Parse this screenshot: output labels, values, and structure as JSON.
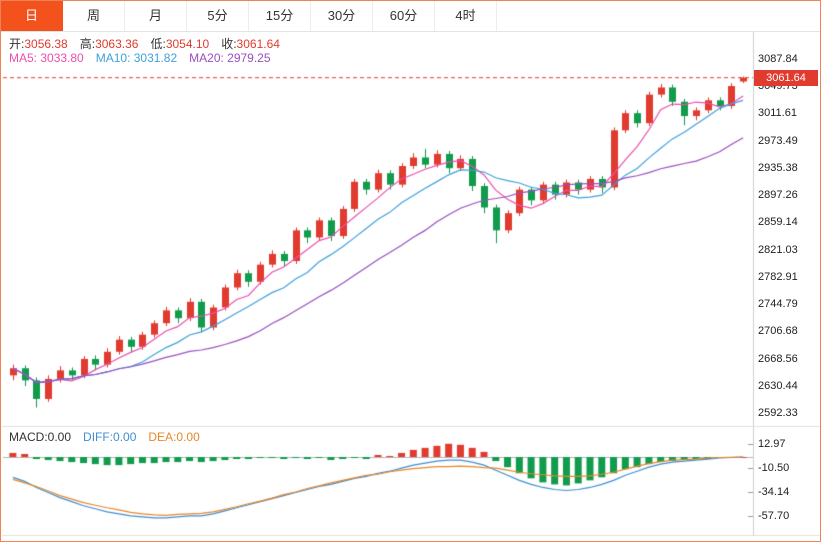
{
  "tabs": [
    {
      "name": "day",
      "label": "日",
      "active": true
    },
    {
      "name": "week",
      "label": "周",
      "active": false
    },
    {
      "name": "month",
      "label": "月",
      "active": false
    },
    {
      "name": "m5",
      "label": "5分",
      "active": false
    },
    {
      "name": "m15",
      "label": "15分",
      "active": false
    },
    {
      "name": "m30",
      "label": "30分",
      "active": false
    },
    {
      "name": "m60",
      "label": "60分",
      "active": false
    },
    {
      "name": "h4",
      "label": "4时",
      "active": false
    }
  ],
  "ohlc": {
    "items": [
      {
        "name": "open",
        "label": "开:",
        "value": "3056.38"
      },
      {
        "name": "high",
        "label": "高:",
        "value": "3063.36"
      },
      {
        "name": "low",
        "label": "低:",
        "value": "3054.10"
      },
      {
        "name": "close",
        "label": "收:",
        "value": "3061.64"
      }
    ],
    "value_color": "#e13b2f"
  },
  "ma_legend": [
    {
      "name": "ma5",
      "label": "MA5:",
      "value": "3033.80",
      "color": "#ec4fae"
    },
    {
      "name": "ma10",
      "label": "MA10:",
      "value": "3031.82",
      "color": "#41a0dc"
    },
    {
      "name": "ma20",
      "label": "MA20:",
      "value": "2979.25",
      "color": "#9a4fc0"
    }
  ],
  "macd_legend": [
    {
      "name": "macd",
      "label": "MACD:",
      "value": "0.00",
      "color": "#333333"
    },
    {
      "name": "diff",
      "label": "DIFF:",
      "value": "0.00",
      "color": "#3f8fd4"
    },
    {
      "name": "dea",
      "label": "DEA:",
      "value": "0.00",
      "color": "#e8872a"
    }
  ],
  "price_tag": {
    "value": "3061.64",
    "bg": "#e13b2f"
  },
  "axis": {
    "price_labels": [
      "3087.84",
      "3049.73",
      "3011.61",
      "2973.49",
      "2935.38",
      "2897.26",
      "2859.14",
      "2821.03",
      "2782.91",
      "2744.79",
      "2706.68",
      "2668.56",
      "2630.44",
      "2592.33"
    ],
    "macd_labels": [
      "12.97",
      "-10.50",
      "-34.14",
      "-57.70"
    ]
  },
  "colors": {
    "up": "#e13b2f",
    "down": "#119b4c",
    "ma5": "#ec4fae",
    "ma10": "#41a0dc",
    "ma20": "#9a4fc0",
    "diff_line": "#3f8fd4",
    "dea_line": "#e8872a",
    "tab_active_bg": "#f4521d",
    "page_border": "#ef8257",
    "axis_line": "#cfcfcf",
    "zero_line": "#b5b5b5",
    "separator": "#e0e0e0",
    "dashed_price": "#e13b2f"
  },
  "chart_data": [
    {
      "type": "candlestick",
      "name": "price-panel",
      "y_range": [
        2592.33,
        3087.84
      ],
      "y_ticks": [
        "3087.84",
        "3049.73",
        "3011.61",
        "2973.49",
        "2935.38",
        "2897.26",
        "2859.14",
        "2821.03",
        "2782.91",
        "2744.79",
        "2706.68",
        "2668.56",
        "2630.44",
        "2592.33"
      ],
      "ma_periods": [
        5,
        10,
        20
      ],
      "last_close": 3061.64,
      "candles": [
        [
          2645,
          2660,
          2638,
          2655
        ],
        [
          2655,
          2659,
          2630,
          2638
        ],
        [
          2638,
          2642,
          2600,
          2612
        ],
        [
          2612,
          2645,
          2608,
          2640
        ],
        [
          2640,
          2658,
          2635,
          2652
        ],
        [
          2652,
          2656,
          2638,
          2645
        ],
        [
          2645,
          2672,
          2641,
          2668
        ],
        [
          2668,
          2673,
          2652,
          2660
        ],
        [
          2660,
          2683,
          2656,
          2678
        ],
        [
          2678,
          2700,
          2674,
          2695
        ],
        [
          2695,
          2699,
          2678,
          2685
        ],
        [
          2685,
          2706,
          2681,
          2702
        ],
        [
          2702,
          2722,
          2698,
          2718
        ],
        [
          2718,
          2741,
          2714,
          2736
        ],
        [
          2736,
          2740,
          2718,
          2725
        ],
        [
          2725,
          2753,
          2721,
          2748
        ],
        [
          2748,
          2752,
          2705,
          2712
        ],
        [
          2712,
          2744,
          2708,
          2740
        ],
        [
          2740,
          2772,
          2736,
          2768
        ],
        [
          2768,
          2793,
          2764,
          2788
        ],
        [
          2788,
          2792,
          2769,
          2776
        ],
        [
          2776,
          2804,
          2772,
          2800
        ],
        [
          2800,
          2820,
          2796,
          2815
        ],
        [
          2815,
          2819,
          2798,
          2805
        ],
        [
          2805,
          2852,
          2801,
          2848
        ],
        [
          2848,
          2852,
          2830,
          2838
        ],
        [
          2838,
          2866,
          2834,
          2862
        ],
        [
          2862,
          2866,
          2833,
          2840
        ],
        [
          2840,
          2882,
          2836,
          2878
        ],
        [
          2878,
          2920,
          2874,
          2916
        ],
        [
          2916,
          2920,
          2898,
          2905
        ],
        [
          2905,
          2933,
          2901,
          2928
        ],
        [
          2928,
          2932,
          2905,
          2912
        ],
        [
          2912,
          2942,
          2908,
          2938
        ],
        [
          2938,
          2956,
          2934,
          2950
        ],
        [
          2950,
          2962,
          2935,
          2940
        ],
        [
          2940,
          2960,
          2936,
          2955
        ],
        [
          2955,
          2959,
          2928,
          2935
        ],
        [
          2935,
          2953,
          2931,
          2948
        ],
        [
          2948,
          2952,
          2903,
          2910
        ],
        [
          2910,
          2914,
          2872,
          2880
        ],
        [
          2880,
          2884,
          2830,
          2848
        ],
        [
          2848,
          2876,
          2844,
          2872
        ],
        [
          2872,
          2909,
          2868,
          2905
        ],
        [
          2905,
          2909,
          2883,
          2890
        ],
        [
          2890,
          2916,
          2886,
          2912
        ],
        [
          2912,
          2916,
          2891,
          2898
        ],
        [
          2898,
          2919,
          2894,
          2915
        ],
        [
          2915,
          2919,
          2898,
          2905
        ],
        [
          2905,
          2924,
          2901,
          2920
        ],
        [
          2920,
          2924,
          2900,
          2908
        ],
        [
          2908,
          2992,
          2904,
          2988
        ],
        [
          2988,
          3016,
          2984,
          3012
        ],
        [
          3012,
          3016,
          2992,
          2998
        ],
        [
          2998,
          3042,
          2994,
          3038
        ],
        [
          3038,
          3053,
          3034,
          3048
        ],
        [
          3048,
          3052,
          3022,
          3028
        ],
        [
          3028,
          3032,
          2995,
          3008
        ],
        [
          3008,
          3020,
          3002,
          3016
        ],
        [
          3016,
          3034,
          3012,
          3030
        ],
        [
          3030,
          3034,
          3016,
          3022
        ],
        [
          3022,
          3054,
          3018,
          3050
        ],
        [
          3056.38,
          3063.36,
          3054.1,
          3061.64
        ]
      ]
    },
    {
      "type": "bar",
      "name": "macd-panel",
      "y_ticks": [
        "12.97",
        "-10.50",
        "-34.14",
        "-57.70"
      ],
      "hist": [
        4,
        3,
        -2,
        -3,
        -4,
        -5,
        -6,
        -7,
        -8,
        -8,
        -7,
        -6,
        -6,
        -5,
        -5,
        -4,
        -5,
        -4,
        -3,
        -2,
        -2,
        -1,
        -1,
        -2,
        -1,
        -2,
        -1,
        -3,
        -2,
        -1,
        -2,
        2,
        1,
        4,
        7,
        9,
        11,
        13,
        12,
        9,
        5,
        -4,
        -10,
        -16,
        -21,
        -25,
        -27,
        -28,
        -26,
        -23,
        -20,
        -16,
        -12,
        -10,
        -7,
        -5,
        -4,
        -3,
        -2,
        -2,
        -1,
        -0.5,
        0
      ],
      "diff": [
        -20,
        -24,
        -30,
        -35,
        -40,
        -44,
        -48,
        -51,
        -54,
        -56,
        -58,
        -59,
        -60,
        -60,
        -59,
        -58,
        -58,
        -56,
        -53,
        -50,
        -47,
        -44,
        -41,
        -38,
        -35,
        -32,
        -29,
        -27,
        -24,
        -21,
        -19,
        -16,
        -14,
        -11,
        -8,
        -6,
        -4,
        -3,
        -3,
        -5,
        -8,
        -13,
        -18,
        -23,
        -27,
        -30,
        -32,
        -33,
        -32,
        -30,
        -27,
        -23,
        -18,
        -14,
        -10,
        -7,
        -5,
        -4,
        -3,
        -2,
        -1,
        -0.5,
        0
      ]
    }
  ]
}
